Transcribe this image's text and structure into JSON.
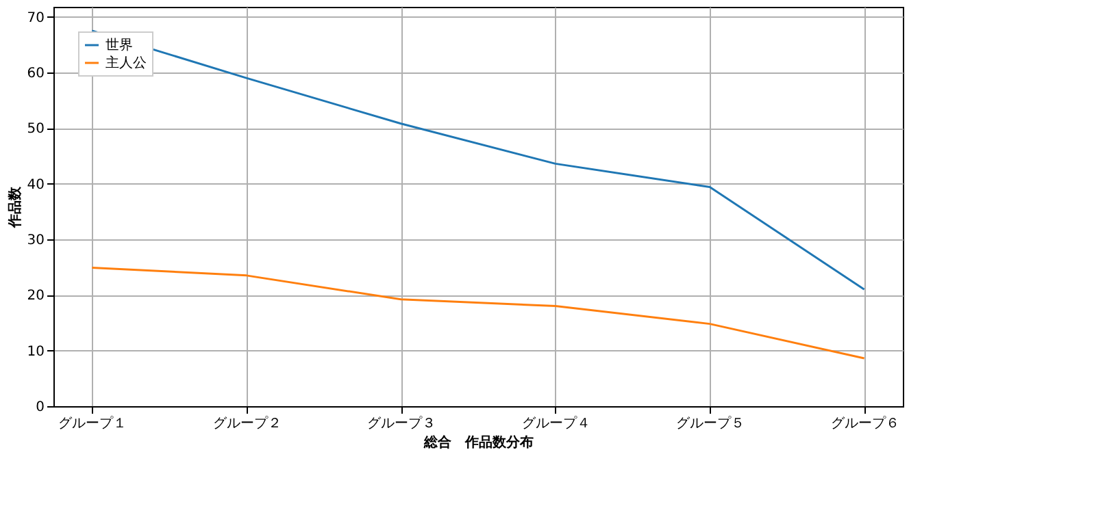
{
  "chart_data": {
    "type": "line",
    "xlabel": "総合　作品数分布",
    "ylabel": "作品数",
    "categories": [
      "グループ１",
      "グループ２",
      "グループ３",
      "グループ４",
      "グループ５",
      "グループ６"
    ],
    "series": [
      {
        "name": "世界",
        "color": "#1f77b4",
        "values": [
          67.5,
          59,
          50.8,
          43.6,
          39.4,
          21
        ]
      },
      {
        "name": "主人公",
        "color": "#ff7f0e",
        "values": [
          24.9,
          23.5,
          19.2,
          18.0,
          14.8,
          8.6
        ]
      }
    ],
    "ylim": [
      0,
      71.8
    ],
    "yticks": [
      0,
      10,
      20,
      30,
      40,
      50,
      60,
      70
    ],
    "grid": true,
    "legend": "top left",
    "marker": "none",
    "line_style": "solid"
  }
}
